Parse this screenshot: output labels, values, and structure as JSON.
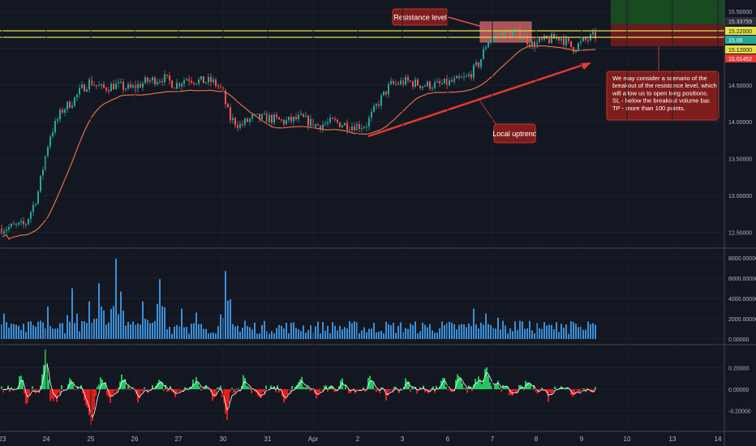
{
  "chart_data": [
    {
      "type": "candlestick",
      "panel": "price",
      "y_ticks": [
        "15.50000",
        "15.00000",
        "14.50000",
        "14.00000",
        "13.50000",
        "13.00000",
        "12.50000"
      ],
      "ylim": [
        12.35,
        15.6
      ],
      "x_ticks": [
        "23",
        "24",
        "25",
        "26",
        "27",
        "30",
        "31",
        "Apr",
        "2",
        "3",
        "6",
        "7",
        "8",
        "9",
        "10",
        "13",
        "14"
      ],
      "price_labels": {
        "high": "15.33759",
        "resistance_upper": "15.22000",
        "current": "15.06",
        "resistance_lower": "15.12000",
        "stop": "15.01452"
      },
      "key_levels": {
        "resistance_upper": 15.22,
        "resistance_lower": 15.12,
        "ma_end": 15.0
      },
      "path_points": [
        [
          0,
          12.55
        ],
        [
          30,
          12.6
        ],
        [
          45,
          13.0
        ],
        [
          60,
          13.8
        ],
        [
          75,
          14.15
        ],
        [
          90,
          14.3
        ],
        [
          100,
          14.45
        ],
        [
          110,
          14.55
        ],
        [
          125,
          14.45
        ],
        [
          140,
          14.5
        ],
        [
          160,
          14.45
        ],
        [
          180,
          14.55
        ],
        [
          200,
          14.6
        ],
        [
          215,
          14.5
        ],
        [
          230,
          14.6
        ],
        [
          245,
          14.55
        ],
        [
          260,
          14.55
        ],
        [
          272,
          14.45
        ],
        [
          282,
          14.05
        ],
        [
          295,
          13.95
        ],
        [
          310,
          14.05
        ],
        [
          330,
          14.05
        ],
        [
          350,
          14.0
        ],
        [
          370,
          14.05
        ],
        [
          390,
          13.95
        ],
        [
          410,
          14.0
        ],
        [
          430,
          13.95
        ],
        [
          450,
          13.95
        ],
        [
          465,
          14.25
        ],
        [
          480,
          14.5
        ],
        [
          500,
          14.55
        ],
        [
          520,
          14.5
        ],
        [
          540,
          14.5
        ],
        [
          560,
          14.55
        ],
        [
          575,
          14.6
        ],
        [
          590,
          14.8
        ],
        [
          600,
          15.1
        ],
        [
          615,
          15.2
        ],
        [
          640,
          15.2
        ],
        [
          655,
          15.05
        ],
        [
          670,
          15.1
        ],
        [
          690,
          15.15
        ],
        [
          705,
          15.0
        ],
        [
          720,
          15.1
        ],
        [
          733,
          15.17
        ]
      ],
      "annotations": {
        "resistance_label": "Resistance level",
        "uptrend_label": "Local uptrend",
        "scenario_note": [
          "We may consider a scenario of the",
          "breakout of the resistance level, which",
          "will allow us to open long positions.",
          "SL - below the breakout volume bar.",
          "TP - more than 100 points."
        ]
      },
      "colors": {
        "up": "#26a69a",
        "down": "#ef5350",
        "ma": "#e0704a",
        "resistance": "#e6e04a",
        "trendline": "#e53935",
        "tp_zone": "#1b5e20",
        "sl_zone": "#7f1d1d"
      }
    },
    {
      "type": "bar",
      "panel": "volume",
      "y_ticks": [
        "8000.00000",
        "6000.00000",
        "4000.00000",
        "2000.00000",
        "0.00000"
      ],
      "ylim": [
        0,
        8400
      ],
      "spikes": [
        [
          3,
          2500
        ],
        [
          28,
          1500
        ],
        [
          50,
          1800
        ],
        [
          58,
          3200
        ],
        [
          88,
          5000
        ],
        [
          108,
          3700
        ],
        [
          122,
          5500
        ],
        [
          128,
          2800
        ],
        [
          142,
          7900
        ],
        [
          152,
          2800
        ],
        [
          175,
          3700
        ],
        [
          195,
          5900
        ],
        [
          222,
          3000
        ],
        [
          240,
          2600
        ],
        [
          278,
          6700
        ],
        [
          300,
          1800
        ],
        [
          455,
          1000
        ],
        [
          524,
          1400
        ],
        [
          582,
          3000
        ],
        [
          598,
          2500
        ],
        [
          614,
          2100
        ],
        [
          640,
          1800
        ],
        [
          690,
          1500
        ],
        [
          718,
          900
        ]
      ],
      "color": "#3d8fd6"
    },
    {
      "type": "area",
      "panel": "oscillator",
      "y_ticks": [
        "0.20000",
        "0.00000",
        "-0.20000"
      ],
      "ylim": [
        -0.36,
        0.36
      ],
      "spikes": [
        [
          25,
          0.16
        ],
        [
          32,
          -0.12
        ],
        [
          55,
          0.33
        ],
        [
          62,
          -0.1
        ],
        [
          68,
          -0.12
        ],
        [
          85,
          0.1
        ],
        [
          105,
          -0.15
        ],
        [
          112,
          -0.35
        ],
        [
          125,
          0.12
        ],
        [
          135,
          -0.12
        ],
        [
          150,
          0.14
        ],
        [
          170,
          -0.1
        ],
        [
          195,
          0.12
        ],
        [
          215,
          -0.1
        ],
        [
          240,
          0.1
        ],
        [
          262,
          -0.1
        ],
        [
          278,
          -0.3
        ],
        [
          300,
          0.12
        ],
        [
          320,
          -0.1
        ],
        [
          350,
          -0.12
        ],
        [
          370,
          0.1
        ],
        [
          390,
          -0.08
        ],
        [
          420,
          0.08
        ],
        [
          455,
          0.1
        ],
        [
          475,
          -0.08
        ],
        [
          500,
          0.08
        ],
        [
          545,
          0.12
        ],
        [
          565,
          0.15
        ],
        [
          588,
          0.12
        ],
        [
          598,
          0.2
        ],
        [
          612,
          0.1
        ],
        [
          630,
          -0.08
        ],
        [
          650,
          0.08
        ],
        [
          675,
          -0.08
        ],
        [
          690,
          0.06
        ],
        [
          705,
          -0.05
        ]
      ],
      "colors": {
        "up": "#22c55e",
        "down": "#e11d1d",
        "signal": "#ffffff"
      }
    }
  ]
}
